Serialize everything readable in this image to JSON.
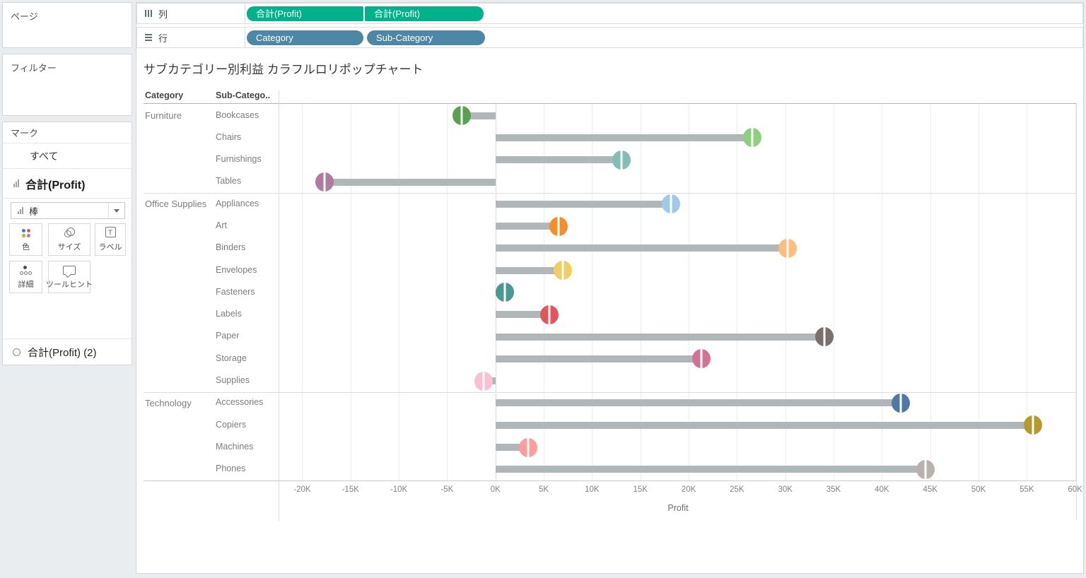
{
  "sidebar": {
    "pages_label": "ページ",
    "filters_label": "フィルター",
    "marks": {
      "title": "マーク",
      "all_tab": "すべて",
      "active_field": "合計(Profit)",
      "mark_type_value": "棒",
      "buttons": [
        {
          "label": "色",
          "icon": "color-dots"
        },
        {
          "label": "サイズ",
          "icon": "size-circles"
        },
        {
          "label": "ラベル",
          "icon": "label-T"
        },
        {
          "label": "詳細",
          "icon": "detail-dots"
        },
        {
          "label": "ツールヒント",
          "icon": "tooltip-bubble"
        }
      ],
      "secondary_field": "合計(Profit) (2)"
    }
  },
  "shelves": {
    "columns": {
      "label": "列",
      "pills": [
        {
          "label": "合計(Profit)",
          "type": "measure"
        },
        {
          "label": "合計(Profit)",
          "type": "measure"
        }
      ]
    },
    "rows": {
      "label": "行",
      "pills": [
        {
          "label": "Category",
          "type": "dimension"
        },
        {
          "label": "Sub-Category",
          "type": "dimension"
        }
      ]
    }
  },
  "colors": {
    "measure_pill": "#00b18a",
    "dimension_pill": "#4e87a5",
    "bar": "#b1b6b8",
    "icon_dots": [
      "#4e79a7",
      "#e15759",
      "#f28e2b",
      "#b07aa1"
    ]
  },
  "chart_data": {
    "type": "bar",
    "subtype": "lollipop (gray bar + colored circle, dual axis)",
    "title": "サブカテゴリー別利益 カラフルロリポップチャート",
    "column_headers": [
      "Category",
      "Sub-Catego.."
    ],
    "xlabel": "Profit",
    "x_tick_labels": [
      "-20K",
      "-15K",
      "-10K",
      "-5K",
      "0K",
      "5K",
      "10K",
      "15K",
      "20K",
      "25K",
      "30K",
      "35K",
      "40K",
      "45K",
      "50K",
      "55K",
      "60K"
    ],
    "x_tick_values": [
      -20000,
      -15000,
      -10000,
      -5000,
      0,
      5000,
      10000,
      15000,
      20000,
      25000,
      30000,
      35000,
      40000,
      45000,
      50000,
      55000,
      60000
    ],
    "xlim": [
      -22300,
      60100
    ],
    "grid": "vertical light gridlines every 5K, dotted zero line",
    "rows": [
      {
        "category": "Furniture",
        "sub_category": "Bookcases",
        "profit": -3473,
        "color": "#59A14F"
      },
      {
        "category": "Furniture",
        "sub_category": "Chairs",
        "profit": 26590,
        "color": "#8CD17D"
      },
      {
        "category": "Furniture",
        "sub_category": "Furnishings",
        "profit": 13059,
        "color": "#86BCB6"
      },
      {
        "category": "Furniture",
        "sub_category": "Tables",
        "profit": -17725,
        "color": "#B07AA1"
      },
      {
        "category": "Office Supplies",
        "sub_category": "Appliances",
        "profit": 18138,
        "color": "#A0CBE8"
      },
      {
        "category": "Office Supplies",
        "sub_category": "Art",
        "profit": 6528,
        "color": "#F28E2B"
      },
      {
        "category": "Office Supplies",
        "sub_category": "Binders",
        "profit": 30222,
        "color": "#FFBE7D"
      },
      {
        "category": "Office Supplies",
        "sub_category": "Envelopes",
        "profit": 6964,
        "color": "#F1CE63"
      },
      {
        "category": "Office Supplies",
        "sub_category": "Fasteners",
        "profit": 950,
        "color": "#499894"
      },
      {
        "category": "Office Supplies",
        "sub_category": "Labels",
        "profit": 5546,
        "color": "#E15759"
      },
      {
        "category": "Office Supplies",
        "sub_category": "Paper",
        "profit": 34054,
        "color": "#79706E"
      },
      {
        "category": "Office Supplies",
        "sub_category": "Storage",
        "profit": 21279,
        "color": "#D37295"
      },
      {
        "category": "Office Supplies",
        "sub_category": "Supplies",
        "profit": -1189,
        "color": "#FABFD2"
      },
      {
        "category": "Technology",
        "sub_category": "Accessories",
        "profit": 41937,
        "color": "#4E79A7"
      },
      {
        "category": "Technology",
        "sub_category": "Copiers",
        "profit": 55618,
        "color": "#B6992D"
      },
      {
        "category": "Technology",
        "sub_category": "Machines",
        "profit": 3385,
        "color": "#FF9D9A"
      },
      {
        "category": "Technology",
        "sub_category": "Phones",
        "profit": 44516,
        "color": "#BAB0AC"
      }
    ]
  }
}
